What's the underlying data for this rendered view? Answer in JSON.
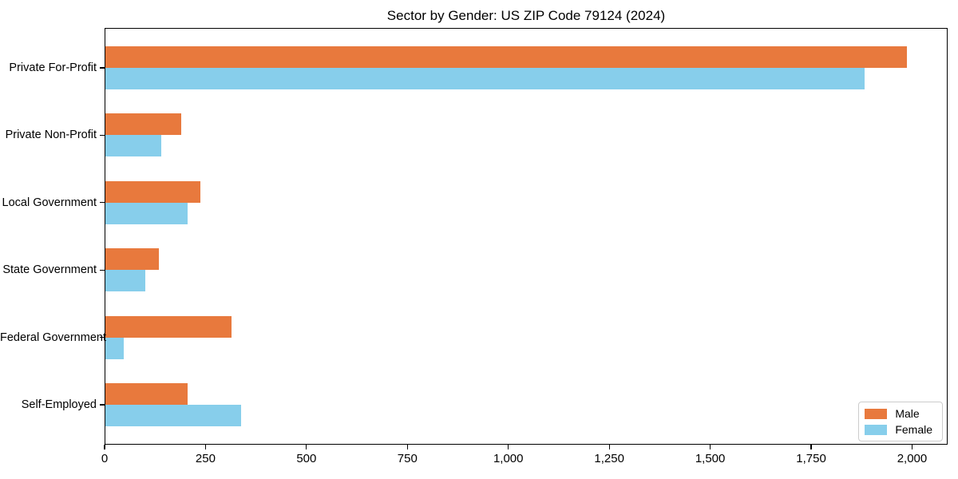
{
  "chart_data": {
    "type": "bar",
    "orientation": "horizontal",
    "title": "Sector by Gender: US ZIP Code 79124 (2024)",
    "categories": [
      "Private For-Profit",
      "Private Non-Profit",
      "Local Government",
      "State Government",
      "Federal Government",
      "Self-Employed"
    ],
    "series": [
      {
        "name": "Male",
        "color": "#e8793d",
        "values": [
          1988,
          189,
          237,
          135,
          314,
          206
        ]
      },
      {
        "name": "Female",
        "color": "#87ceeb",
        "values": [
          1883,
          140,
          206,
          101,
          48,
          338
        ]
      }
    ],
    "xlabel": "",
    "ylabel": "",
    "xlim": [
      0,
      2088
    ],
    "xticks": [
      0,
      250,
      500,
      750,
      1000,
      1250,
      1500,
      1750,
      2000
    ],
    "xtick_labels": [
      "0",
      "250",
      "500",
      "750",
      "1,000",
      "1,250",
      "1,500",
      "1,750",
      "2,000"
    ],
    "grid": false,
    "legend_position": "lower right",
    "colors": {
      "background": "#ffffff",
      "spine": "#000000",
      "legend_border": "#cccccc",
      "text": "#000000"
    }
  }
}
